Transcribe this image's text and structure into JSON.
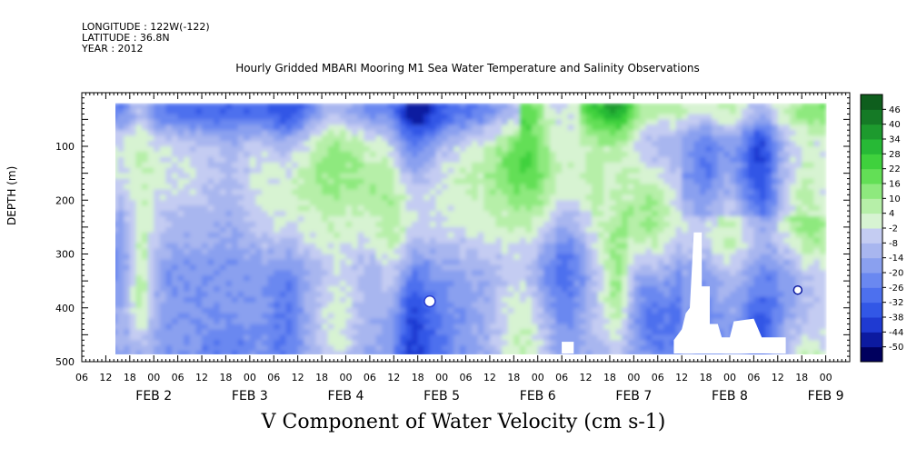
{
  "header": {
    "longitude": "LONGITUDE : 122W(-122)",
    "latitude": "LATITUDE : 36.8N",
    "year": "YEAR : 2012"
  },
  "chart_data": {
    "type": "heatmap",
    "title": "Hourly Gridded MBARI Mooring M1 Sea Water Temperature and Salinity Observations",
    "xlabel": "V Component of Water Velocity (cm s-1)",
    "ylabel": "DEPTH (m)",
    "ylim": [
      500,
      0
    ],
    "yticks": [
      100,
      200,
      300,
      400,
      500
    ],
    "xrange_hours": [
      "FEB 1 06",
      "FEB 9 06"
    ],
    "hour_tick_labels": [
      "06",
      "12",
      "18",
      "00",
      "06",
      "12",
      "18",
      "00",
      "06",
      "12",
      "18",
      "00",
      "06",
      "12",
      "18",
      "00",
      "06",
      "12",
      "18",
      "00",
      "06",
      "12",
      "18",
      "00",
      "06",
      "12",
      "18",
      "00",
      "06",
      "12",
      "18",
      "00"
    ],
    "day_labels": [
      "FEB 2",
      "FEB 3",
      "FEB 4",
      "FEB 5",
      "FEB 6",
      "FEB 7",
      "FEB 8",
      "FEB 9"
    ],
    "colorbar": {
      "levels": [
        46,
        40,
        34,
        28,
        22,
        16,
        10,
        4,
        -2,
        -8,
        -14,
        -20,
        -26,
        -32,
        -38,
        -44,
        -50
      ],
      "label_levels": [
        "46",
        "40",
        "34",
        "28",
        "22",
        "16",
        "10",
        "4",
        "-2",
        "-8",
        "-14",
        "-20",
        "-26",
        "-32",
        "-38",
        "-44",
        "-50"
      ],
      "colors_low_to_high": [
        "#00005e",
        "#0c1aa0",
        "#1f3ad2",
        "#3257e6",
        "#4d70ee",
        "#6a88f0",
        "#8aa0ef",
        "#a8b6ef",
        "#c4ccf2",
        "#d7f3d2",
        "#b6efa8",
        "#8ee97e",
        "#63df56",
        "#3fd13d",
        "#27b936",
        "#1d9a2e",
        "#157a26",
        "#0e5e1d"
      ]
    },
    "grid": false,
    "missing_color": "#ffffff"
  }
}
